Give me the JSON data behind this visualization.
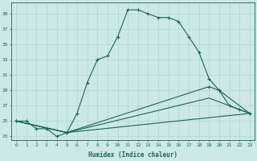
{
  "xlabel": "Humidex (Indice chaleur)",
  "bg_color": "#cce8e8",
  "grid_color": "#b0d0cc",
  "line_color": "#1a6655",
  "xlim": [
    -0.5,
    23.5
  ],
  "ylim": [
    22.5,
    40.5
  ],
  "xticks": [
    0,
    1,
    2,
    3,
    4,
    5,
    6,
    7,
    8,
    9,
    10,
    11,
    12,
    13,
    14,
    15,
    16,
    17,
    18,
    19,
    20,
    21,
    22,
    23
  ],
  "yticks": [
    23,
    25,
    27,
    29,
    31,
    33,
    35,
    37,
    39
  ],
  "line1_x": [
    0,
    1,
    2,
    3,
    4,
    5,
    6,
    7,
    8,
    9,
    10,
    11,
    12,
    13,
    14,
    15,
    16,
    17,
    18,
    19,
    20,
    21,
    22,
    23
  ],
  "line1_y": [
    25,
    25,
    24,
    24,
    23,
    23.5,
    26,
    30,
    33,
    33.5,
    36,
    39.5,
    39.5,
    39,
    38.5,
    38.5,
    38,
    36,
    34,
    30.5,
    29,
    27,
    26.5,
    26
  ],
  "line2_x": [
    0,
    5,
    19,
    20,
    23
  ],
  "line2_y": [
    25,
    23.5,
    29.5,
    29,
    26
  ],
  "line3_x": [
    0,
    5,
    19,
    23
  ],
  "line3_y": [
    25,
    23.5,
    28,
    26
  ],
  "line4_x": [
    0,
    5,
    23
  ],
  "line4_y": [
    25,
    23.5,
    26
  ]
}
